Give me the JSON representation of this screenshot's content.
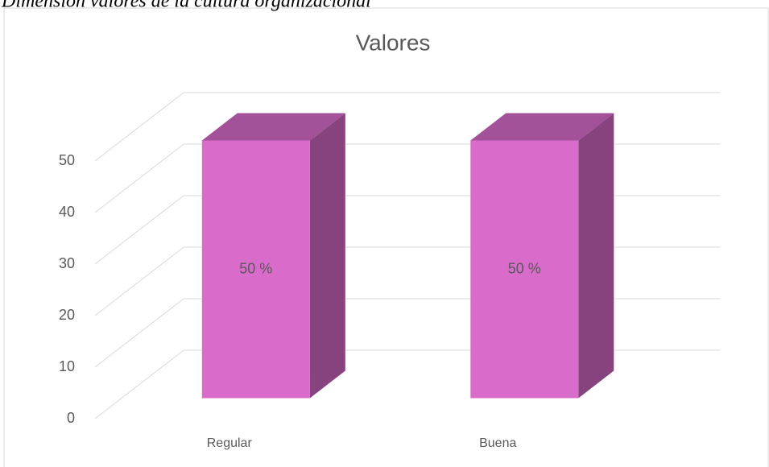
{
  "caption": "Dimensión valores de la cultura organizacional",
  "chart_data": {
    "type": "bar3d",
    "title": "Valores",
    "categories": [
      "Regular",
      "Buena"
    ],
    "values": [
      50,
      50
    ],
    "value_labels": [
      "50 %",
      "50 %"
    ],
    "color": "#d96ccb",
    "ylim": [
      0,
      50
    ],
    "yticks": [
      0,
      10,
      20,
      30,
      40,
      50
    ],
    "grid": true
  }
}
